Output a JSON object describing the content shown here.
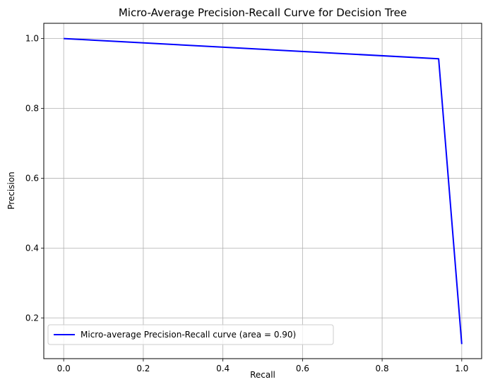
{
  "chart_data": {
    "type": "line",
    "title": "Micro-Average Precision-Recall Curve for Decision Tree",
    "xlabel": "Recall",
    "ylabel": "Precision",
    "xlim": [
      -0.05,
      1.05
    ],
    "ylim": [
      0.0833,
      1.0437
    ],
    "xticks": [
      0.0,
      0.2,
      0.4,
      0.6,
      0.8,
      1.0
    ],
    "xtick_labels": [
      "0.0",
      "0.2",
      "0.4",
      "0.6",
      "0.8",
      "1.0"
    ],
    "yticks": [
      0.2,
      0.4,
      0.6,
      0.8,
      1.0
    ],
    "ytick_labels": [
      "0.2",
      "0.4",
      "0.6",
      "0.8",
      "1.0"
    ],
    "grid": true,
    "legend_position": "lower-left",
    "series": [
      {
        "name": "Micro-average Precision-Recall curve (area = 0.90)",
        "color": "#0000ff",
        "x": [
          0.0,
          0.942,
          1.0
        ],
        "y": [
          1.0,
          0.942,
          0.125
        ]
      }
    ]
  }
}
